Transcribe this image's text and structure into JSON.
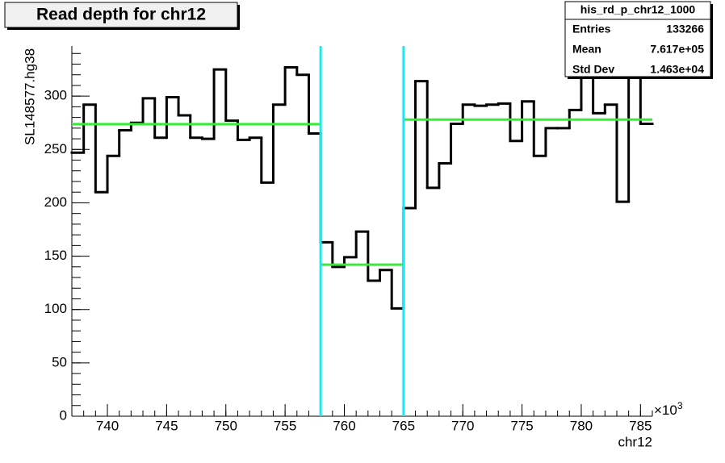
{
  "chart_data": {
    "type": "histogram",
    "title": "Read depth for chr12",
    "xlabel": "chr12",
    "ylabel": "SL148577.hg38",
    "x_exponent": {
      "base": "×10",
      "exp": "3"
    },
    "bins": [
      737,
      738,
      739,
      740,
      741,
      742,
      743,
      744,
      745,
      746,
      747,
      748,
      749,
      750,
      751,
      752,
      753,
      754,
      755,
      756,
      757,
      758,
      759,
      760,
      761,
      762,
      763,
      764,
      765,
      766,
      767,
      768,
      769,
      770,
      771,
      772,
      773,
      774,
      775,
      776,
      777,
      778,
      779,
      780,
      781,
      782,
      783,
      784,
      785,
      786
    ],
    "values": [
      247,
      292,
      210,
      244,
      268,
      275,
      298,
      261,
      299,
      282,
      261,
      260,
      325,
      277,
      259,
      261,
      219,
      292,
      327,
      320,
      265,
      163,
      140,
      149,
      173,
      127,
      137,
      101,
      195,
      314,
      214,
      237,
      274,
      292,
      291,
      292,
      293,
      258,
      295,
      244,
      270,
      270,
      287,
      319,
      284,
      292,
      201,
      330,
      274
    ],
    "color": "#000000",
    "fits": [
      {
        "x": [
          737,
          758
        ],
        "y": 273.8
      },
      {
        "x": [
          758,
          765
        ],
        "y": 142
      },
      {
        "x": [
          765,
          786
        ],
        "y": 278
      }
    ],
    "fit_color": "#33ee33",
    "breakpoints": [
      758,
      765
    ],
    "breakpoint_color": "#22e5ee",
    "xlim": [
      737,
      786
    ],
    "ylim": [
      0,
      347
    ],
    "xticks": [
      740,
      745,
      750,
      755,
      760,
      765,
      770,
      775,
      780,
      785
    ],
    "yticks": [
      0,
      50,
      100,
      150,
      200,
      250,
      300
    ],
    "x_minor_step": 1,
    "y_minor_step": 10,
    "stats": {
      "title": "his_rd_p_chr12_1000",
      "rows": [
        [
          "Entries",
          "133266"
        ],
        [
          "Mean",
          "7.617e+05"
        ],
        [
          "Std Dev",
          "1.463e+04"
        ]
      ]
    }
  }
}
